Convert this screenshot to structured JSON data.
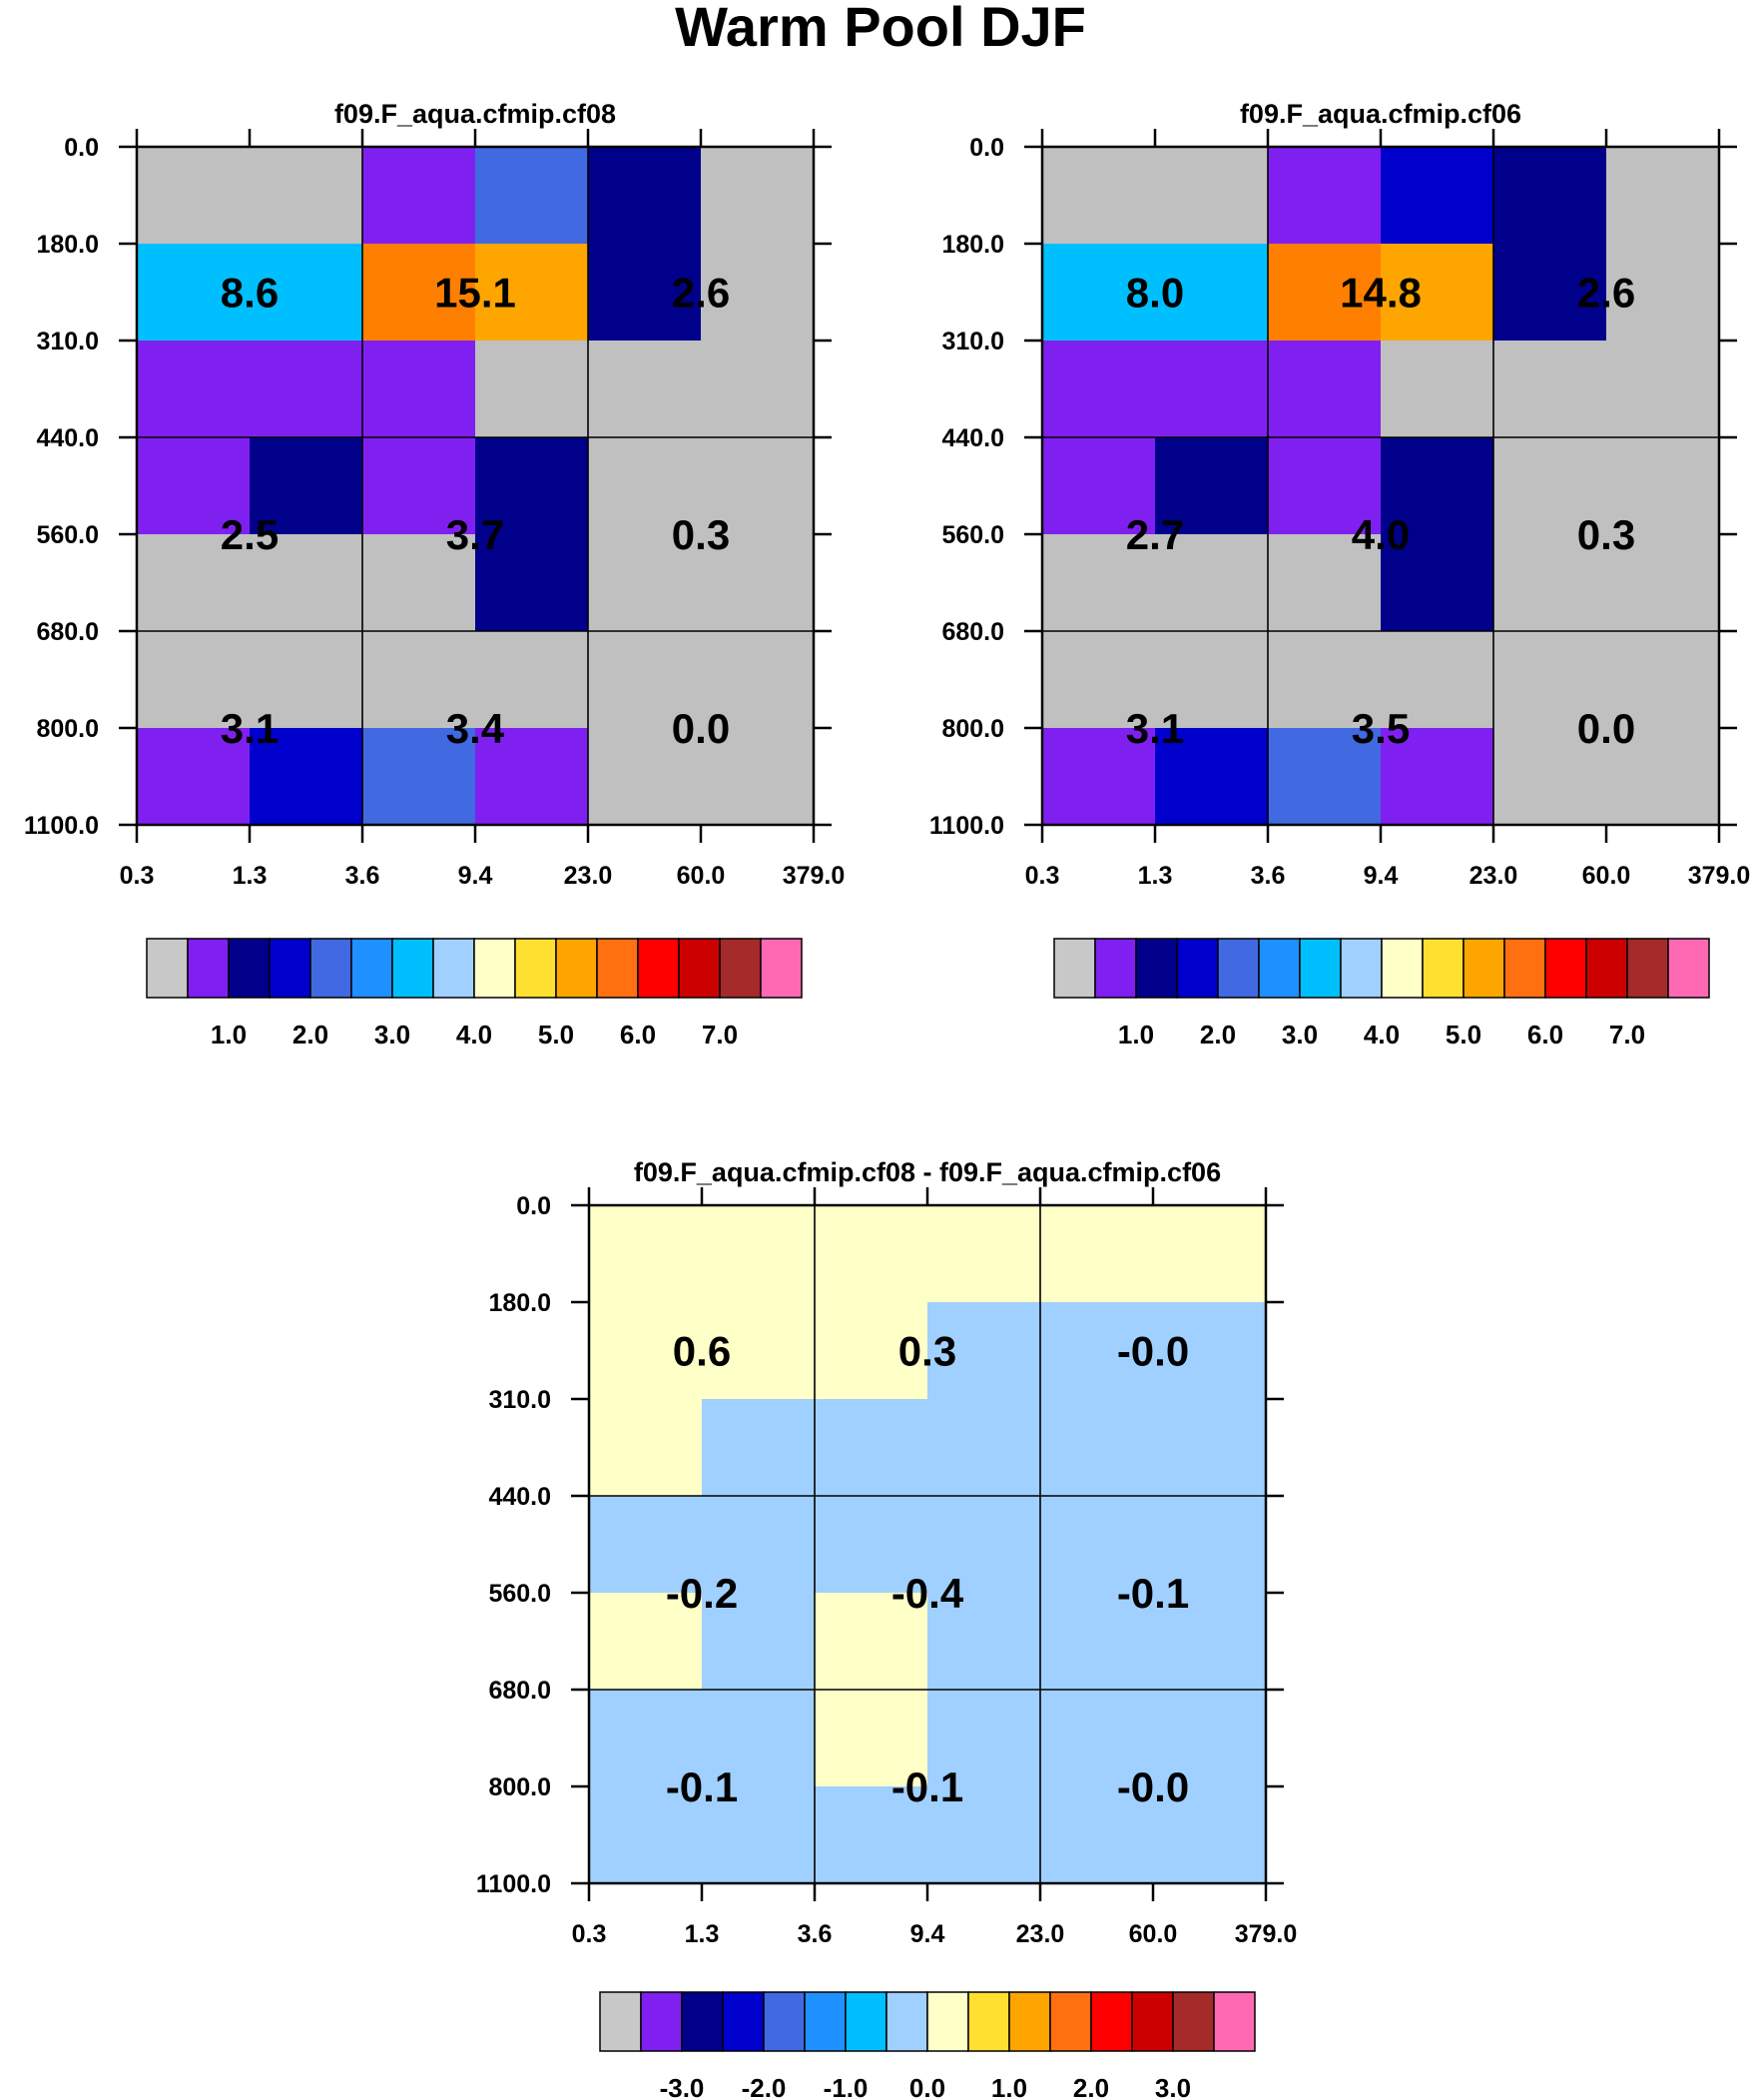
{
  "title": "Warm Pool DJF",
  "chart_data": [
    {
      "type": "heatmap",
      "title": "f09.F_aqua.cfmip.cf08",
      "x_ticks": [
        "0.3",
        "1.3",
        "3.6",
        "9.4",
        "23.0",
        "60.0",
        "379.0"
      ],
      "y_ticks": [
        "0.0",
        "180.0",
        "310.0",
        "440.0",
        "560.0",
        "680.0",
        "800.0",
        "1100.0"
      ],
      "cell_colors": [
        [
          "#c0c0c0",
          "#c0c0c0",
          "#8020f0",
          "#4169e1",
          "#00008b",
          "#c0c0c0"
        ],
        [
          "#00bfff",
          "#00bfff",
          "#ff7f00",
          "#ffa500",
          "#00008b",
          "#c0c0c0"
        ],
        [
          "#8020f0",
          "#8020f0",
          "#8020f0",
          "#c0c0c0",
          "#c0c0c0",
          "#c0c0c0"
        ],
        [
          "#8020f0",
          "#00008b",
          "#8020f0",
          "#00008b",
          "#c0c0c0",
          "#c0c0c0"
        ],
        [
          "#c0c0c0",
          "#c0c0c0",
          "#c0c0c0",
          "#00008b",
          "#c0c0c0",
          "#c0c0c0"
        ],
        [
          "#c0c0c0",
          "#c0c0c0",
          "#c0c0c0",
          "#c0c0c0",
          "#c0c0c0",
          "#c0c0c0"
        ],
        [
          "#8020f0",
          "#0000cd",
          "#4169e1",
          "#8020f0",
          "#c0c0c0",
          "#c0c0c0"
        ]
      ],
      "block_labels": [
        [
          "8.6",
          "15.1",
          "2.6"
        ],
        [
          "2.5",
          "3.7",
          "0.3"
        ],
        [
          "3.1",
          "3.4",
          "0.0"
        ]
      ],
      "colorbar": {
        "colors": [
          "#c8c8c8",
          "#8020f0",
          "#00008b",
          "#0000cd",
          "#4169e1",
          "#1e90ff",
          "#00bfff",
          "#a0d0ff",
          "#ffffc8",
          "#ffe030",
          "#ffa500",
          "#ff7010",
          "#ff0000",
          "#cd0000",
          "#a52a2a",
          "#ff69b4"
        ],
        "labels": [
          "1.0",
          "2.0",
          "3.0",
          "4.0",
          "5.0",
          "6.0",
          "7.0"
        ]
      }
    },
    {
      "type": "heatmap",
      "title": "f09.F_aqua.cfmip.cf06",
      "x_ticks": [
        "0.3",
        "1.3",
        "3.6",
        "9.4",
        "23.0",
        "60.0",
        "379.0"
      ],
      "y_ticks": [
        "0.0",
        "180.0",
        "310.0",
        "440.0",
        "560.0",
        "680.0",
        "800.0",
        "1100.0"
      ],
      "cell_colors": [
        [
          "#c0c0c0",
          "#c0c0c0",
          "#8020f0",
          "#0000cd",
          "#00008b",
          "#c0c0c0"
        ],
        [
          "#00bfff",
          "#00bfff",
          "#ff7f00",
          "#ffa500",
          "#00008b",
          "#c0c0c0"
        ],
        [
          "#8020f0",
          "#8020f0",
          "#8020f0",
          "#c0c0c0",
          "#c0c0c0",
          "#c0c0c0"
        ],
        [
          "#8020f0",
          "#00008b",
          "#8020f0",
          "#00008b",
          "#c0c0c0",
          "#c0c0c0"
        ],
        [
          "#c0c0c0",
          "#c0c0c0",
          "#c0c0c0",
          "#00008b",
          "#c0c0c0",
          "#c0c0c0"
        ],
        [
          "#c0c0c0",
          "#c0c0c0",
          "#c0c0c0",
          "#c0c0c0",
          "#c0c0c0",
          "#c0c0c0"
        ],
        [
          "#8020f0",
          "#0000cd",
          "#4169e1",
          "#8020f0",
          "#c0c0c0",
          "#c0c0c0"
        ]
      ],
      "block_labels": [
        [
          "8.0",
          "14.8",
          "2.6"
        ],
        [
          "2.7",
          "4.0",
          "0.3"
        ],
        [
          "3.1",
          "3.5",
          "0.0"
        ]
      ],
      "colorbar": {
        "colors": [
          "#c8c8c8",
          "#8020f0",
          "#00008b",
          "#0000cd",
          "#4169e1",
          "#1e90ff",
          "#00bfff",
          "#a0d0ff",
          "#ffffc8",
          "#ffe030",
          "#ffa500",
          "#ff7010",
          "#ff0000",
          "#cd0000",
          "#a52a2a",
          "#ff69b4"
        ],
        "labels": [
          "1.0",
          "2.0",
          "3.0",
          "4.0",
          "5.0",
          "6.0",
          "7.0"
        ]
      }
    },
    {
      "type": "heatmap",
      "title": "f09.F_aqua.cfmip.cf08 - f09.F_aqua.cfmip.cf06",
      "x_ticks": [
        "0.3",
        "1.3",
        "3.6",
        "9.4",
        "23.0",
        "60.0",
        "379.0"
      ],
      "y_ticks": [
        "0.0",
        "180.0",
        "310.0",
        "440.0",
        "560.0",
        "680.0",
        "800.0",
        "1100.0"
      ],
      "cell_colors": [
        [
          "#ffffc8",
          "#ffffc8",
          "#ffffc8",
          "#ffffc8",
          "#ffffc8",
          "#ffffc8"
        ],
        [
          "#ffffc8",
          "#ffffc8",
          "#ffffc8",
          "#a0d0ff",
          "#a0d0ff",
          "#a0d0ff"
        ],
        [
          "#ffffc8",
          "#a0d0ff",
          "#a0d0ff",
          "#a0d0ff",
          "#a0d0ff",
          "#a0d0ff"
        ],
        [
          "#a0d0ff",
          "#a0d0ff",
          "#a0d0ff",
          "#a0d0ff",
          "#a0d0ff",
          "#a0d0ff"
        ],
        [
          "#ffffc8",
          "#a0d0ff",
          "#ffffc8",
          "#a0d0ff",
          "#a0d0ff",
          "#a0d0ff"
        ],
        [
          "#a0d0ff",
          "#a0d0ff",
          "#ffffc8",
          "#a0d0ff",
          "#a0d0ff",
          "#a0d0ff"
        ],
        [
          "#a0d0ff",
          "#a0d0ff",
          "#a0d0ff",
          "#a0d0ff",
          "#a0d0ff",
          "#a0d0ff"
        ]
      ],
      "block_labels": [
        [
          "0.6",
          "0.3",
          "-0.0"
        ],
        [
          "-0.2",
          "-0.4",
          "-0.1"
        ],
        [
          "-0.1",
          "-0.1",
          "-0.0"
        ]
      ],
      "colorbar": {
        "colors": [
          "#c8c8c8",
          "#8020f0",
          "#00008b",
          "#0000cd",
          "#4169e1",
          "#1e90ff",
          "#00bfff",
          "#a0d0ff",
          "#ffffc8",
          "#ffe030",
          "#ffa500",
          "#ff7010",
          "#ff0000",
          "#cd0000",
          "#a52a2a",
          "#ff69b4"
        ],
        "labels": [
          "-3.0",
          "-2.0",
          "-1.0",
          "0.0",
          "1.0",
          "2.0",
          "3.0"
        ]
      }
    }
  ]
}
